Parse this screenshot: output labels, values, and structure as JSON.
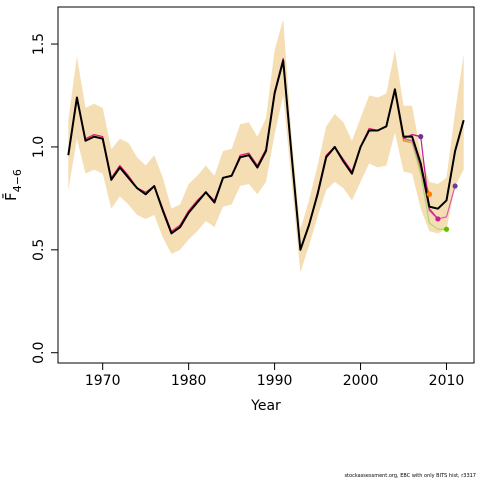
{
  "chart_data": {
    "type": "line",
    "xlabel": "Year",
    "ylabel": "F̄",
    "ylabel_sub": "4−6",
    "xlim": [
      1964.8,
      2013.2
    ],
    "ylim": [
      -0.05,
      1.68
    ],
    "x_ticks": [
      {
        "value": 1970,
        "label": "1970"
      },
      {
        "value": 1980,
        "label": "1980"
      },
      {
        "value": 1990,
        "label": "1990"
      },
      {
        "value": 2000,
        "label": "2000"
      },
      {
        "value": 2010,
        "label": "2010"
      }
    ],
    "y_ticks": [
      {
        "value": 0.0,
        "label": "0.0"
      },
      {
        "value": 0.5,
        "label": "0.5"
      },
      {
        "value": 1.0,
        "label": "1.0"
      },
      {
        "value": 1.5,
        "label": "1.5"
      }
    ],
    "grid": false,
    "band": {
      "color": "#f5deb3",
      "x": [
        1966,
        1967,
        1968,
        1969,
        1970,
        1971,
        1972,
        1973,
        1974,
        1975,
        1976,
        1977,
        1978,
        1979,
        1980,
        1981,
        1982,
        1983,
        1984,
        1985,
        1986,
        1987,
        1988,
        1989,
        1990,
        1991,
        1992,
        1993,
        1994,
        1995,
        1996,
        1997,
        1998,
        1999,
        2000,
        2001,
        2002,
        2003,
        2004,
        2005,
        2006,
        2007,
        2008,
        2009,
        2010,
        2011,
        2012
      ],
      "upper": [
        1.13,
        1.44,
        1.19,
        1.21,
        1.19,
        0.99,
        1.04,
        1.02,
        0.95,
        0.91,
        0.96,
        0.85,
        0.7,
        0.72,
        0.82,
        0.86,
        0.91,
        0.86,
        0.98,
        0.99,
        1.11,
        1.12,
        1.05,
        1.14,
        1.47,
        1.62,
        1.04,
        0.6,
        0.74,
        0.91,
        1.1,
        1.16,
        1.12,
        1.03,
        1.14,
        1.25,
        1.24,
        1.26,
        1.47,
        1.2,
        1.2,
        0.97,
        0.83,
        0.82,
        0.85,
        1.17,
        1.45
      ],
      "lower": [
        0.79,
        1.04,
        0.87,
        0.89,
        0.87,
        0.7,
        0.76,
        0.72,
        0.67,
        0.65,
        0.67,
        0.56,
        0.48,
        0.5,
        0.55,
        0.59,
        0.64,
        0.61,
        0.71,
        0.72,
        0.81,
        0.82,
        0.77,
        0.83,
        1.06,
        1.25,
        0.82,
        0.39,
        0.52,
        0.66,
        0.79,
        0.83,
        0.8,
        0.74,
        0.83,
        0.92,
        0.9,
        0.91,
        1.07,
        0.88,
        0.87,
        0.7,
        0.59,
        0.58,
        0.6,
        0.81,
        0.89
      ]
    },
    "series": [
      {
        "color": "#000000",
        "x": [
          1966,
          1967,
          1968,
          1969,
          1970,
          1971,
          1972,
          1973,
          1974,
          1975,
          1976,
          1977,
          1978,
          1979,
          1980,
          1981,
          1982,
          1983,
          1984,
          1985,
          1986,
          1987,
          1988,
          1989,
          1990,
          1991,
          1992,
          1993,
          1994,
          1995,
          1996,
          1997,
          1998,
          1999,
          2000,
          2001,
          2002,
          2003,
          2004,
          2005,
          2006,
          2007,
          2008,
          2009,
          2010,
          2011,
          2012
        ],
        "y": [
          0.96,
          1.24,
          1.03,
          1.05,
          1.04,
          0.84,
          0.9,
          0.85,
          0.8,
          0.77,
          0.81,
          0.69,
          0.58,
          0.61,
          0.68,
          0.73,
          0.78,
          0.73,
          0.85,
          0.86,
          0.95,
          0.96,
          0.9,
          0.98,
          1.26,
          1.42,
          0.95,
          0.5,
          0.62,
          0.77,
          0.95,
          1.0,
          0.93,
          0.87,
          1.0,
          1.08,
          1.08,
          1.1,
          1.28,
          1.05,
          1.05,
          0.92,
          0.71,
          0.7,
          0.74,
          0.98,
          1.13
        ]
      },
      {
        "color": "#e3186f",
        "x": [
          1966,
          1967,
          1968,
          1969,
          1970,
          1971,
          1972,
          1973,
          1974,
          1975,
          1976,
          1977,
          1978,
          1979,
          1980,
          1981,
          1982,
          1983,
          1984,
          1985,
          1986,
          1987,
          1988,
          1989,
          1990,
          1991,
          1992,
          1993,
          1994,
          1995,
          1996,
          1997,
          1998,
          1999,
          2000,
          2001,
          2002,
          2003,
          2004,
          2005,
          2006,
          2007,
          2008
        ],
        "y": [
          0.96,
          1.24,
          1.04,
          1.06,
          1.05,
          0.85,
          0.91,
          0.86,
          0.8,
          0.78,
          0.81,
          0.7,
          0.59,
          0.62,
          0.69,
          0.74,
          0.78,
          0.74,
          0.85,
          0.86,
          0.96,
          0.97,
          0.91,
          0.99,
          1.27,
          1.43,
          0.96,
          0.5,
          0.62,
          0.78,
          0.96,
          1.0,
          0.94,
          0.88,
          1.0,
          1.09,
          1.08,
          1.1,
          1.28,
          1.04,
          1.03,
          0.9,
          0.77
        ],
        "end_marker": {
          "x": 2008,
          "y": 0.77,
          "color": "#e31a1c"
        }
      },
      {
        "color": "#ff7f00",
        "x": [
          2004,
          2005,
          2006,
          2007,
          2008
        ],
        "y": [
          1.27,
          1.03,
          1.02,
          0.88,
          0.77
        ],
        "end_marker": {
          "x": 2008,
          "y": 0.77,
          "color": "#ff7f00"
        }
      },
      {
        "color": "#a6d96a",
        "x": [
          2005,
          2006,
          2007,
          2008,
          2009,
          2010
        ],
        "y": [
          1.04,
          1.02,
          0.87,
          0.63,
          0.6,
          0.6
        ],
        "end_marker": {
          "x": 2010,
          "y": 0.6,
          "color": "#66bd00"
        }
      },
      {
        "color": "#d95fb0",
        "x": [
          2005,
          2006,
          2007,
          2008,
          2009,
          2010,
          2011
        ],
        "y": [
          1.04,
          1.03,
          0.9,
          0.69,
          0.65,
          0.66,
          0.81
        ],
        "end_marker": {
          "x": 2011,
          "y": 0.81,
          "color": "#6a3d9a"
        }
      },
      {
        "color": "#c51b8a",
        "x": [
          2005,
          2006,
          2007,
          2008,
          2009
        ],
        "y": [
          1.04,
          1.06,
          1.05,
          0.7,
          0.65
        ],
        "end_marker": {
          "x": 2009,
          "y": 0.65,
          "color": "#d01c8b"
        }
      },
      {
        "color": "#c51b8a",
        "x": [
          2006,
          2007
        ],
        "y": [
          1.06,
          1.05
        ],
        "end_marker": {
          "x": 2007,
          "y": 1.05,
          "color": "#7b2d8b"
        }
      }
    ],
    "footer_text": "stockassessment.org, EBC with only BITS hist, r3317"
  }
}
